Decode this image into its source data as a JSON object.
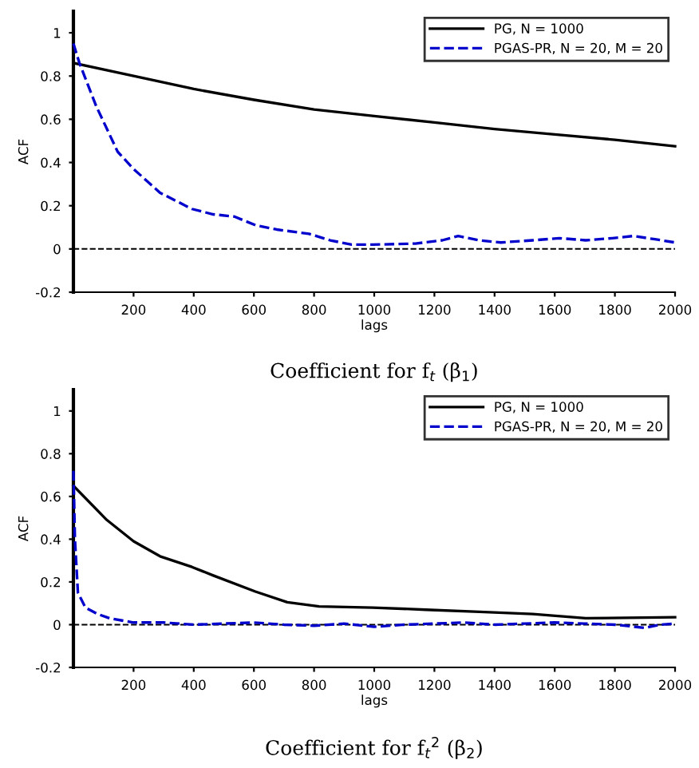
{
  "chart_data": [
    {
      "type": "line",
      "title": "Coefficient for f$_{t}$ (β$_{1}$)",
      "xlabel": "lags",
      "ylabel": "ACF",
      "xlim": [
        0,
        2000
      ],
      "xticks": [
        200,
        400,
        600,
        800,
        1000,
        1200,
        1400,
        1600,
        1800,
        2000
      ],
      "ylim": [
        -0.2,
        1.1
      ],
      "yticks": [
        -0.2,
        0,
        0.2,
        0.4,
        0.6,
        0.8,
        1
      ],
      "grid": false,
      "legend": "top right",
      "ref_lines": [
        {
          "axis": "y",
          "value": 0,
          "color": "#000000",
          "line_style": "dashed"
        }
      ],
      "series": [
        {
          "name": "PG, N = 1000",
          "color": "#000000",
          "line_style": "solid",
          "x": [
            0,
            200,
            400,
            600,
            800,
            1000,
            1200,
            1400,
            1600,
            1800,
            2000
          ],
          "values": [
            0.86,
            0.8,
            0.74,
            0.69,
            0.645,
            0.615,
            0.585,
            0.555,
            0.53,
            0.505,
            0.475
          ]
        },
        {
          "name": "PGAS-PR, N = 20, M = 20",
          "color": "#0000cc",
          "line_style": "dashed",
          "x": [
            0,
            20,
            76,
            147,
            200,
            288,
            394,
            465,
            535,
            605,
            676,
            783,
            854,
            925,
            995,
            1137,
            1226,
            1279,
            1350,
            1421,
            1527,
            1615,
            1703,
            1792,
            1862,
            1933,
            2000
          ],
          "values": [
            0.95,
            0.86,
            0.66,
            0.45,
            0.37,
            0.26,
            0.185,
            0.16,
            0.15,
            0.11,
            0.09,
            0.07,
            0.04,
            0.02,
            0.02,
            0.025,
            0.04,
            0.06,
            0.04,
            0.03,
            0.04,
            0.05,
            0.04,
            0.05,
            0.06,
            0.045,
            0.03
          ]
        }
      ]
    },
    {
      "type": "line",
      "title": "Coefficient for f$_{t}$$^{2}$ (β$_{2}$)",
      "xlabel": "lags",
      "ylabel": "ACF",
      "xlim": [
        0,
        2000
      ],
      "xticks": [
        200,
        400,
        600,
        800,
        1000,
        1200,
        1400,
        1600,
        1800,
        2000
      ],
      "ylim": [
        -0.2,
        1.1
      ],
      "yticks": [
        -0.2,
        0,
        0.2,
        0.4,
        0.6,
        0.8,
        1
      ],
      "grid": false,
      "legend": "top right",
      "ref_lines": [
        {
          "axis": "y",
          "value": 0,
          "color": "#000000",
          "line_style": "dashed"
        }
      ],
      "series": [
        {
          "name": "PG, N = 1000",
          "color": "#000000",
          "line_style": "solid",
          "x": [
            0,
            111,
            200,
            288,
            394,
            465,
            605,
            711,
            817,
            995,
            1172,
            1350,
            1527,
            1703,
            2000
          ],
          "values": [
            0.65,
            0.49,
            0.39,
            0.32,
            0.27,
            0.23,
            0.155,
            0.105,
            0.085,
            0.08,
            0.07,
            0.06,
            0.05,
            0.03,
            0.035
          ]
        },
        {
          "name": "PGAS-PR, N = 20, M = 20",
          "color": "#0000cc",
          "line_style": "dashed",
          "x": [
            0,
            5,
            15,
            40,
            80,
            120,
            200,
            300,
            400,
            500,
            600,
            700,
            800,
            900,
            1000,
            1100,
            1200,
            1300,
            1400,
            1500,
            1600,
            1700,
            1800,
            1900,
            1950,
            2000
          ],
          "values": [
            0.72,
            0.4,
            0.15,
            0.08,
            0.05,
            0.03,
            0.01,
            0.01,
            0.0,
            0.005,
            0.01,
            0.0,
            -0.005,
            0.005,
            -0.01,
            0.0,
            0.005,
            0.01,
            0.0,
            0.005,
            0.01,
            0.005,
            0.0,
            -0.015,
            0.0,
            0.005
          ]
        }
      ]
    }
  ]
}
